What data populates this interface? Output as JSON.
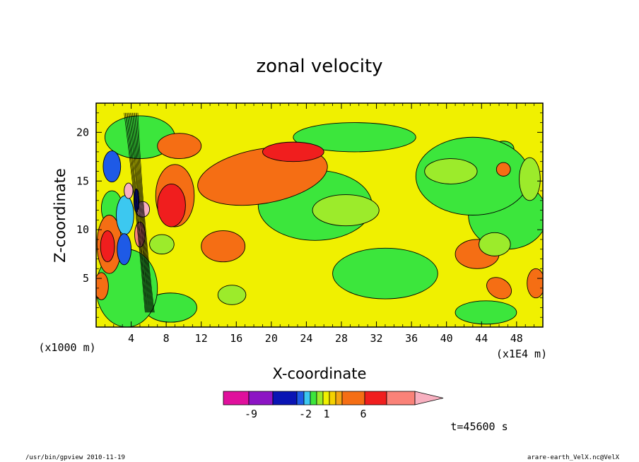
{
  "chart_data": {
    "type": "heatmap",
    "title": "zonal velocity",
    "xlabel": "X-coordinate",
    "ylabel": "Z-coordinate",
    "x_unit_note": "(x1E4 m)",
    "y_unit_note": "(x1000 m)",
    "xlim": [
      0,
      51
    ],
    "ylim": [
      0,
      23
    ],
    "x_ticks": [
      4,
      8,
      12,
      16,
      20,
      24,
      28,
      32,
      36,
      40,
      44,
      48
    ],
    "x_tick_labels": [
      "4",
      "8",
      "12",
      "16",
      "20",
      "24",
      "28",
      "32",
      "36",
      "40",
      "44",
      "48"
    ],
    "y_ticks": [
      5,
      10,
      15,
      20
    ],
    "y_tick_labels": [
      "5",
      "10",
      "15",
      "20"
    ],
    "colorbar": {
      "colors": [
        "#e0109c",
        "#8c14c4",
        "#0a14b4",
        "#1e5ae6",
        "#3cc8f0",
        "#3ce63c",
        "#9ceb2b",
        "#f0f000",
        "#f5d200",
        "#f5a514",
        "#f56e14",
        "#f01e1e",
        "#fa8278",
        "#f8b0c0"
      ],
      "tick_labels": [
        "-9",
        "-2",
        "1",
        "6"
      ]
    },
    "blobs": [
      {
        "value": 3,
        "cx": 19,
        "cy": 15.5,
        "rx": 7.5,
        "ry": 2.8,
        "rot": -10
      },
      {
        "value": 4,
        "cx": 22.5,
        "cy": 18,
        "rx": 3.5,
        "ry": 1.0,
        "rot": 0
      },
      {
        "value": 3,
        "cx": 14.5,
        "cy": 8.3,
        "rx": 2.5,
        "ry": 1.6,
        "rot": 0
      },
      {
        "value": 3,
        "cx": 9,
        "cy": 13.5,
        "rx": 2.2,
        "ry": 3.2,
        "rot": 0
      },
      {
        "value": 4,
        "cx": 8.6,
        "cy": 12.5,
        "rx": 1.6,
        "ry": 2.2,
        "rot": 0
      },
      {
        "value": 3,
        "cx": 9.5,
        "cy": 18.6,
        "rx": 2.5,
        "ry": 1.3,
        "rot": 0
      },
      {
        "value": 3,
        "cx": 1.5,
        "cy": 8.5,
        "rx": 1.4,
        "ry": 3.0,
        "rot": 0
      },
      {
        "value": 4,
        "cx": 1.3,
        "cy": 8.3,
        "rx": 0.8,
        "ry": 1.6,
        "rot": 0
      },
      {
        "value": 3,
        "cx": 0.6,
        "cy": 4.2,
        "rx": 0.8,
        "ry": 1.4,
        "rot": 0
      },
      {
        "value": 3,
        "cx": 50.2,
        "cy": 4.5,
        "rx": 1.0,
        "ry": 1.5,
        "rot": 0
      },
      {
        "value": 3,
        "cx": 46,
        "cy": 4.0,
        "rx": 1.5,
        "ry": 1.0,
        "rot": 30
      },
      {
        "value": 3,
        "cx": 46.5,
        "cy": 16.2,
        "rx": 0.8,
        "ry": 0.7,
        "rot": 0
      },
      {
        "value": 3,
        "cx": 43.5,
        "cy": 7.5,
        "rx": 2.5,
        "ry": 1.5,
        "rot": 0
      },
      {
        "value": 0,
        "cx": 33,
        "cy": 5.5,
        "rx": 6.0,
        "ry": 2.6,
        "rot": 0
      },
      {
        "value": 0,
        "cx": 25,
        "cy": 12.5,
        "rx": 6.5,
        "ry": 3.6,
        "rot": 0
      },
      {
        "value": 0,
        "cx": 43,
        "cy": 15.5,
        "rx": 6.5,
        "ry": 4.0,
        "rot": 0
      },
      {
        "value": 0,
        "cx": 29.5,
        "cy": 19.5,
        "rx": 7.0,
        "ry": 1.5,
        "rot": 0
      },
      {
        "value": 0,
        "cx": 5,
        "cy": 19.5,
        "rx": 4.0,
        "ry": 2.2,
        "rot": 0
      },
      {
        "value": 0,
        "cx": 3.5,
        "cy": 4.0,
        "rx": 3.5,
        "ry": 4.0,
        "rot": 0
      },
      {
        "value": 0,
        "cx": 47,
        "cy": 11.5,
        "rx": 4.5,
        "ry": 3.5,
        "rot": 0
      },
      {
        "value": 0,
        "cx": 8.5,
        "cy": 2.0,
        "rx": 3.0,
        "ry": 1.5,
        "rot": 0
      },
      {
        "value": 0,
        "cx": 44.5,
        "cy": 1.5,
        "rx": 3.5,
        "ry": 1.2,
        "rot": 0
      },
      {
        "value": -1,
        "cx": 28.5,
        "cy": 12.0,
        "rx": 3.8,
        "ry": 1.6,
        "rot": 0
      },
      {
        "value": -1,
        "cx": 15.5,
        "cy": 3.3,
        "rx": 1.6,
        "ry": 1.0,
        "rot": 0
      },
      {
        "value": -1,
        "cx": 40.5,
        "cy": 16.0,
        "rx": 3.0,
        "ry": 1.3,
        "rot": 0
      },
      {
        "value": -1,
        "cx": 45.5,
        "cy": 8.5,
        "rx": 1.8,
        "ry": 1.2,
        "rot": 0
      },
      {
        "value": -1,
        "cx": 7.5,
        "cy": 8.5,
        "rx": 1.4,
        "ry": 1.0,
        "rot": 0
      },
      {
        "value": -1,
        "cx": 49.5,
        "cy": 15.2,
        "rx": 1.2,
        "ry": 2.2,
        "rot": 0
      },
      {
        "value": -2,
        "cx": 41.5,
        "cy": 14.5,
        "rx": 1.6,
        "ry": 0.9,
        "rot": 0
      },
      {
        "value": -2,
        "cx": 46.5,
        "cy": 18.3,
        "rx": 1.2,
        "ry": 0.8,
        "rot": 0
      },
      {
        "value": -2,
        "cx": 49.5,
        "cy": 14.5,
        "rx": 0.7,
        "ry": 1.2,
        "rot": 0
      },
      {
        "value": -2,
        "cx": 45,
        "cy": 14.2,
        "rx": 0.6,
        "ry": 0.5,
        "rot": 0
      },
      {
        "value": -2,
        "cx": 1.8,
        "cy": 12.2,
        "rx": 1.2,
        "ry": 1.8,
        "rot": 0
      },
      {
        "value": -3,
        "cx": 3.3,
        "cy": 11.5,
        "rx": 1.0,
        "ry": 2.0,
        "rot": 0
      },
      {
        "value": -4,
        "cx": 1.8,
        "cy": 16.5,
        "rx": 1.0,
        "ry": 1.6,
        "rot": 0
      },
      {
        "value": -4,
        "cx": 3.2,
        "cy": 8.0,
        "rx": 0.8,
        "ry": 1.6,
        "rot": 0
      },
      {
        "value": 6,
        "cx": 5.3,
        "cy": 12.1,
        "rx": 0.8,
        "ry": 0.8,
        "rot": 0
      },
      {
        "value": 5,
        "cx": 5.0,
        "cy": 9.5,
        "rx": 0.6,
        "ry": 1.3,
        "rot": 0
      },
      {
        "value": 6,
        "cx": 3.7,
        "cy": 14.0,
        "rx": 0.5,
        "ry": 0.8,
        "rot": 0
      },
      {
        "value": -5,
        "cx": 4.6,
        "cy": 13.0,
        "rx": 0.3,
        "ry": 1.2,
        "rot": 0
      }
    ]
  },
  "footer": {
    "left": "/usr/bin/gpview 2010-11-19",
    "right": "arare-earth_VelX.nc@VelX",
    "time": "t=45600 s"
  },
  "colors": {
    "background": "#ffffff",
    "base_field": "#f0f000"
  }
}
